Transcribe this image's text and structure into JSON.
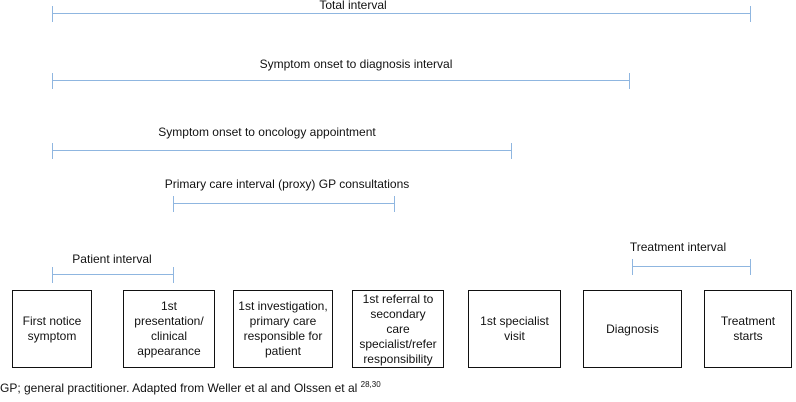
{
  "intervals": {
    "total": "Total interval",
    "diagnosis": "Symptom onset to diagnosis interval",
    "oncology": "Symptom onset to oncology appointment",
    "primary_care": "Primary care interval (proxy) GP consultations",
    "patient": "Patient interval",
    "treatment": "Treatment interval"
  },
  "stages": [
    "First notice symptom",
    "1st presentation/ clinical appearance",
    "1st investigation, primary care responsible for patient",
    "1st referral to secondary care specialist/refer responsibility",
    "1st specialist visit",
    "Diagnosis",
    "Treatment starts"
  ],
  "footnote": {
    "text": "GP; general practitioner. Adapted from Weller et al and Olssen et al ",
    "refs": "28,30"
  },
  "colors": {
    "interval_line": "#8fb6e0",
    "box_border": "#111111",
    "text": "#111111"
  }
}
